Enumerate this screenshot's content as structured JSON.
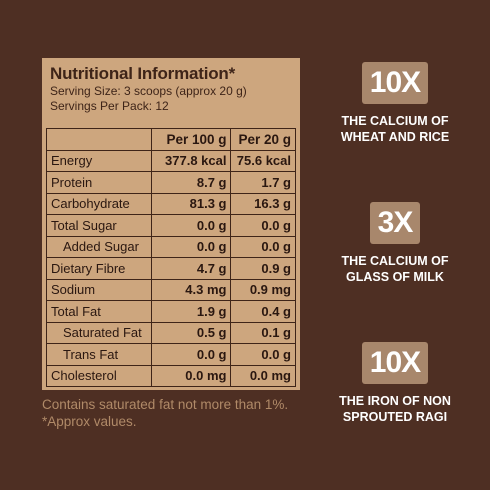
{
  "panel": {
    "title": "Nutritional Information*",
    "serving_size": "Serving Size: 3 scoops (approx 20 g)",
    "servings_per_pack": "Servings Per Pack: 12"
  },
  "table": {
    "headers": [
      "",
      "Per 100 g",
      "Per 20 g"
    ],
    "rows": [
      {
        "label": "Energy",
        "per100": "377.8 kcal",
        "per20": "75.6 kcal"
      },
      {
        "label": "Protein",
        "per100": "8.7 g",
        "per20": "1.7 g"
      },
      {
        "label": "Carbohydrate",
        "per100": "81.3 g",
        "per20": "16.3 g"
      },
      {
        "label": "Total Sugar",
        "per100": "0.0 g",
        "per20": "0.0 g"
      },
      {
        "label": "Added Sugar",
        "per100": "0.0 g",
        "per20": "0.0 g"
      },
      {
        "label": "Dietary Fibre",
        "per100": "4.7 g",
        "per20": "0.9 g"
      },
      {
        "label": "Sodium",
        "per100": "4.3 mg",
        "per20": "0.9 mg"
      },
      {
        "label": "Total Fat",
        "per100": "1.9 g",
        "per20": "0.4 g"
      },
      {
        "label": "Saturated Fat",
        "per100": "0.5 g",
        "per20": "0.1 g"
      },
      {
        "label": "Trans Fat",
        "per100": "0.0 g",
        "per20": "0.0 g"
      },
      {
        "label": "Cholesterol",
        "per100": "0.0 mg",
        "per20": "0.0 mg"
      }
    ]
  },
  "notes": {
    "line1": "Contains saturated fat not more than 1%.",
    "line2": "*Approx values."
  },
  "claims": [
    {
      "badge": "10X",
      "line1": "The calcium of",
      "line2": "wheat and rice"
    },
    {
      "badge": "3X",
      "line1": "The calcium of",
      "line2": "glass of milk"
    },
    {
      "badge": "10X",
      "line1": "The iron of non",
      "line2": "sprouted ragi"
    }
  ],
  "colors": {
    "background": "#4e2f23",
    "panel": "#cda67e",
    "badge": "#a8876c",
    "notes_text": "#b08a68"
  }
}
